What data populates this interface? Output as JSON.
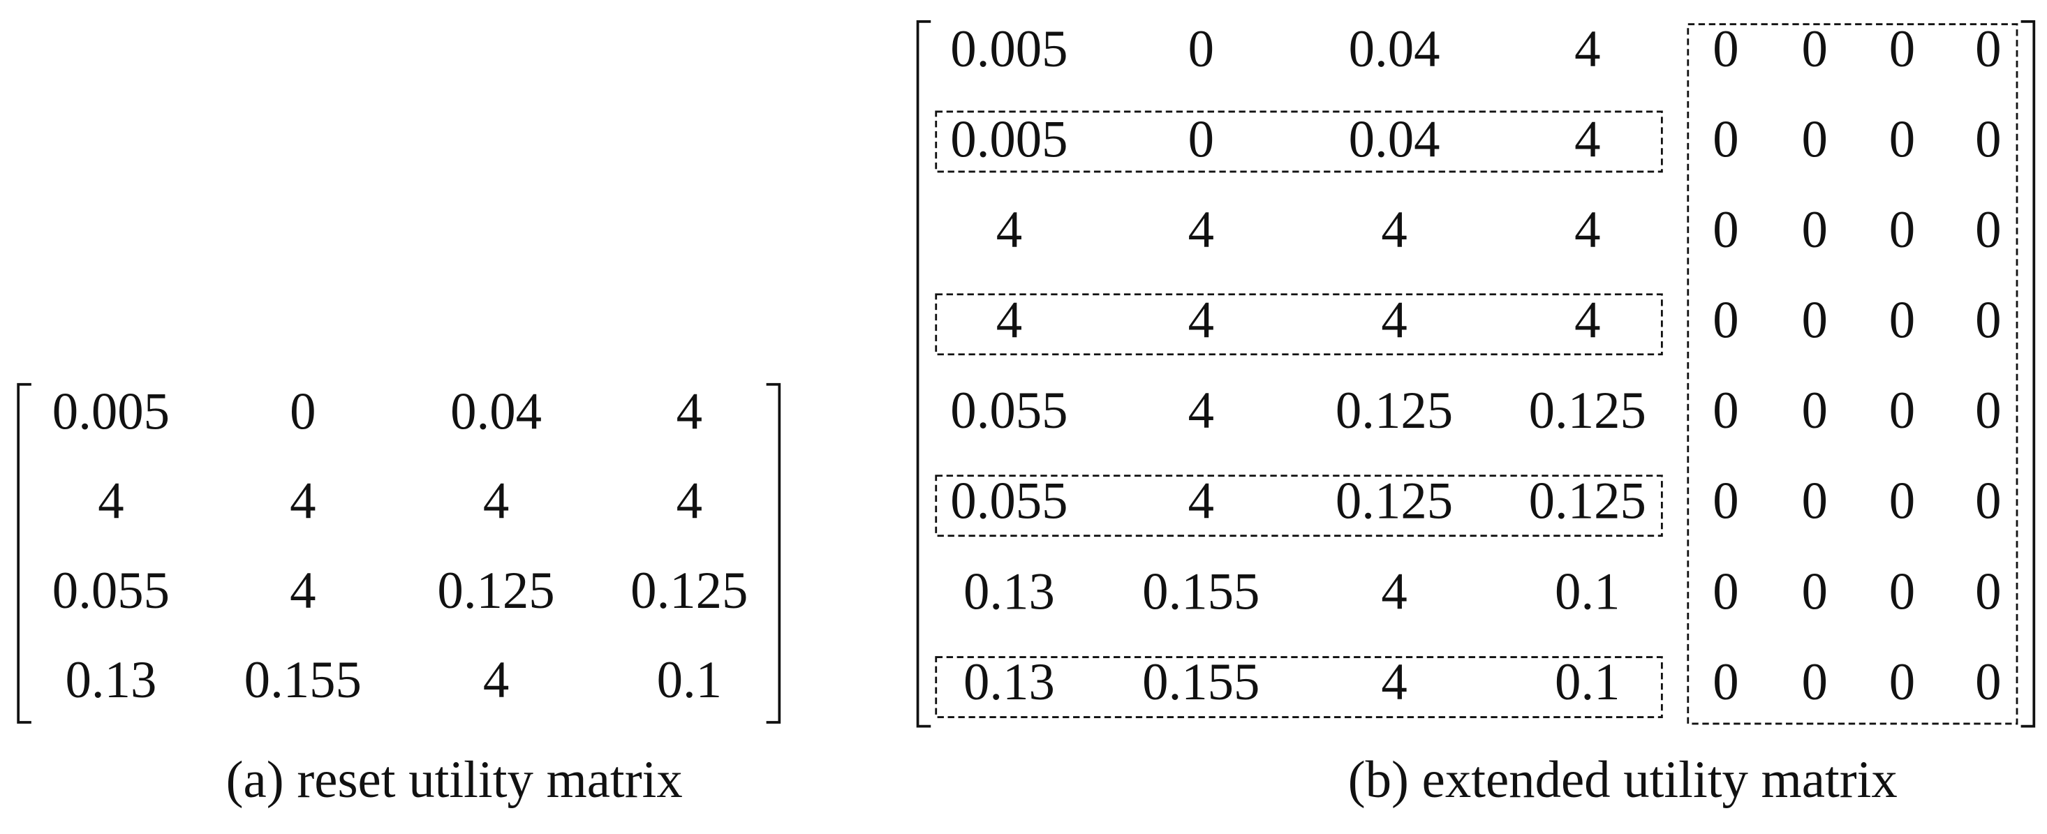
{
  "matrix_a": {
    "rows": [
      [
        "0.005",
        "0",
        "0.04",
        "4"
      ],
      [
        "4",
        "4",
        "4",
        "4"
      ],
      [
        "0.055",
        "4",
        "0.125",
        "0.125"
      ],
      [
        "0.13",
        "0.155",
        "4",
        "0.1"
      ]
    ],
    "caption": "(a) reset utility matrix"
  },
  "matrix_b": {
    "rows": [
      [
        "0.005",
        "0",
        "0.04",
        "4",
        "0",
        "0",
        "0",
        "0"
      ],
      [
        "0.005",
        "0",
        "0.04",
        "4",
        "0",
        "0",
        "0",
        "0"
      ],
      [
        "4",
        "4",
        "4",
        "4",
        "0",
        "0",
        "0",
        "0"
      ],
      [
        "4",
        "4",
        "4",
        "4",
        "0",
        "0",
        "0",
        "0"
      ],
      [
        "0.055",
        "4",
        "0.125",
        "0.125",
        "0",
        "0",
        "0",
        "0"
      ],
      [
        "0.055",
        "4",
        "0.125",
        "0.125",
        "0",
        "0",
        "0",
        "0"
      ],
      [
        "0.13",
        "0.155",
        "4",
        "0.1",
        "0",
        "0",
        "0",
        "0"
      ],
      [
        "0.13",
        "0.155",
        "4",
        "0.1",
        "0",
        "0",
        "0",
        "0"
      ]
    ],
    "caption": "(b) extended utility matrix"
  }
}
